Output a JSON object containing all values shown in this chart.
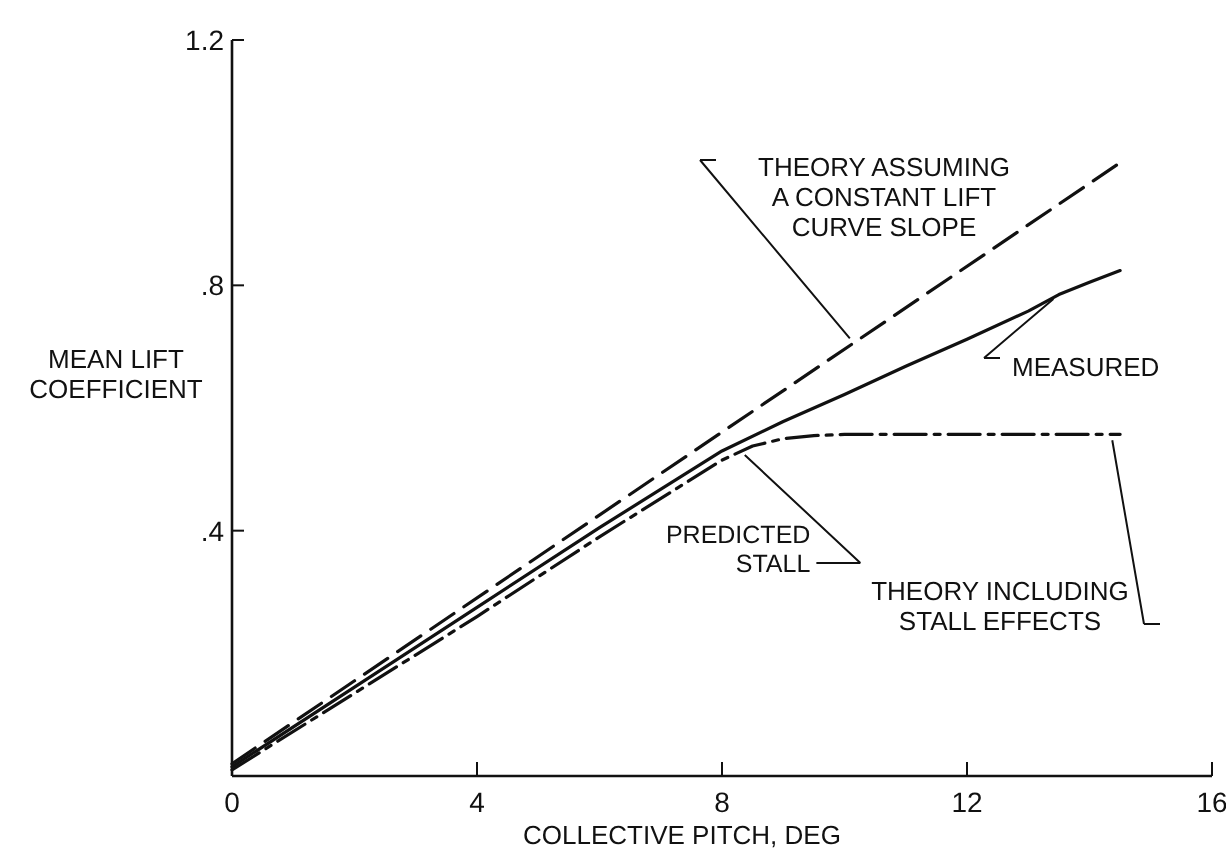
{
  "chart_data": {
    "type": "line",
    "xlabel": "COLLECTIVE PITCH, DEG",
    "ylabel": "MEAN LIFT\nCOEFFICIENT",
    "xlim": [
      0,
      16
    ],
    "ylim": [
      0,
      1.2
    ],
    "xticks": [
      0,
      4,
      8,
      12,
      16
    ],
    "yticks": [
      {
        "value": 0,
        "label": null
      },
      {
        "value": 0.4,
        "label": ".4"
      },
      {
        "value": 0.8,
        "label": ".8"
      },
      {
        "value": 1.2,
        "label": "1.2"
      }
    ],
    "grid": false,
    "legend": "right",
    "marker": "none",
    "series": [
      {
        "name": "THEORY ASSUMING\nA CONSTANT LIFT\nCURVE SLOPE",
        "color": "#111111",
        "line_style": "dashed",
        "x": [
          0,
          14.5
        ],
        "values": [
          0.02,
          1.0
        ]
      },
      {
        "name": "MEASURED",
        "color": "#111111",
        "line_style": "solid",
        "x": [
          0,
          2,
          4,
          6,
          8,
          9,
          10,
          11,
          12,
          13,
          13.5,
          14,
          14.5
        ],
        "values": [
          0.015,
          0.145,
          0.275,
          0.405,
          0.53,
          0.578,
          0.622,
          0.668,
          0.712,
          0.758,
          0.785,
          0.805,
          0.824
        ]
      },
      {
        "name": "THEORY INCLUDING\nSTALL EFFECTS",
        "color": "#111111",
        "line_style": "dashed",
        "x": [
          0,
          2,
          4,
          6,
          8,
          8.5,
          9,
          9.5,
          10,
          12,
          14.5
        ],
        "values": [
          0.01,
          0.135,
          0.26,
          0.39,
          0.515,
          0.538,
          0.55,
          0.555,
          0.557,
          0.557,
          0.557
        ]
      }
    ],
    "annotations": [
      {
        "text": "PREDICTED\nSTALL",
        "x": 8.3,
        "y": 0.53
      }
    ]
  }
}
